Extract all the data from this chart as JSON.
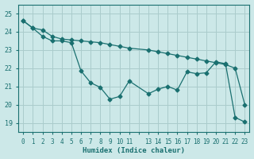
{
  "xlabel": "Humidex (Indice chaleur)",
  "background_color": "#cce8e8",
  "grid_color": "#aacccc",
  "line_color": "#1a7070",
  "x_ticks": [
    0,
    1,
    2,
    3,
    4,
    5,
    6,
    7,
    8,
    9,
    10,
    11,
    12,
    13,
    14,
    15,
    16,
    17,
    18,
    19,
    20,
    21,
    22,
    23
  ],
  "x_tick_labels": [
    "0",
    "1",
    "2",
    "3",
    "4",
    "5",
    "6",
    "7",
    "8",
    "9",
    "10",
    "11",
    "",
    "13",
    "14",
    "15",
    "16",
    "17",
    "18",
    "19",
    "20",
    "21",
    "22",
    "23"
  ],
  "ylim": [
    18.5,
    25.5
  ],
  "xlim": [
    -0.5,
    23.5
  ],
  "yticks": [
    19,
    20,
    21,
    22,
    23,
    24,
    25
  ],
  "line1_x": [
    0,
    1,
    2,
    3,
    4,
    5,
    6,
    7,
    8,
    9,
    10,
    11,
    13,
    14,
    15,
    16,
    17,
    18,
    19,
    20,
    21,
    22,
    23
  ],
  "line1_y": [
    24.6,
    24.2,
    24.1,
    23.75,
    23.6,
    23.55,
    23.5,
    23.45,
    23.4,
    23.3,
    23.2,
    23.1,
    23.0,
    22.9,
    22.8,
    22.7,
    22.6,
    22.5,
    22.4,
    22.3,
    22.2,
    22.0,
    20.0
  ],
  "line2_x": [
    0,
    1,
    2,
    3,
    4,
    5,
    6,
    7,
    8,
    9,
    10,
    11,
    13,
    14,
    15,
    16,
    17,
    18,
    19,
    20,
    21,
    22,
    23
  ],
  "line2_y": [
    24.6,
    24.2,
    23.75,
    23.5,
    23.5,
    23.4,
    21.85,
    21.2,
    20.95,
    20.3,
    20.45,
    21.3,
    20.6,
    20.85,
    21.0,
    20.8,
    21.8,
    21.7,
    21.75,
    22.35,
    22.25,
    19.3,
    19.05
  ]
}
